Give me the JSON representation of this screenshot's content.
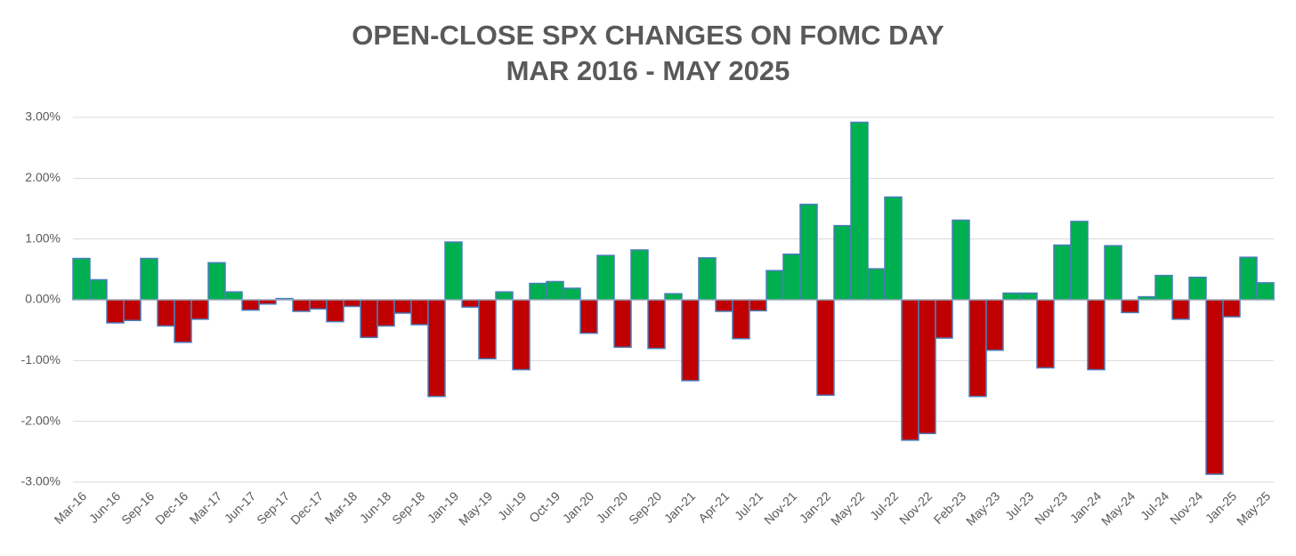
{
  "chart_data": {
    "type": "bar",
    "title": "OPEN-CLOSE SPX CHANGES ON FOMC DAY",
    "subtitle": "MAR 2016 - MAY 2025",
    "categories": [
      "Mar-16",
      null,
      "Jun-16",
      null,
      "Sep-16",
      null,
      "Dec-16",
      null,
      "Mar-17",
      null,
      "Jun-17",
      null,
      "Sep-17",
      null,
      "Dec-17",
      null,
      "Mar-18",
      null,
      "Jun-18",
      null,
      "Sep-18",
      null,
      "Jan-19",
      null,
      "May-19",
      null,
      "Jul-19",
      null,
      "Oct-19",
      null,
      "Jan-20",
      null,
      "Jun-20",
      null,
      "Sep-20",
      null,
      "Jan-21",
      null,
      "Apr-21",
      null,
      "Jul-21",
      null,
      "Nov-21",
      null,
      "Jan-22",
      null,
      "May-22",
      null,
      "Jul-22",
      null,
      "Nov-22",
      null,
      "Feb-23",
      null,
      "May-23",
      null,
      "Jul-23",
      null,
      "Nov-23",
      null,
      "Jan-24",
      null,
      "May-24",
      null,
      "Jul-24",
      null,
      "Nov-24",
      null,
      "Jan-25",
      null,
      "May-25"
    ],
    "values": [
      0.68,
      0.33,
      -0.38,
      -0.34,
      0.68,
      -0.43,
      -0.7,
      -0.32,
      0.61,
      0.13,
      -0.17,
      -0.07,
      0.02,
      -0.19,
      -0.15,
      -0.36,
      -0.11,
      -0.62,
      -0.43,
      -0.22,
      -0.41,
      -1.59,
      0.95,
      -0.12,
      -0.97,
      0.13,
      -1.15,
      0.27,
      0.3,
      0.19,
      -0.55,
      0.73,
      -0.78,
      0.82,
      -0.8,
      0.1,
      -1.33,
      0.69,
      -0.19,
      -0.64,
      -0.18,
      0.48,
      0.75,
      1.57,
      -1.57,
      1.22,
      2.92,
      0.51,
      1.69,
      -2.31,
      -2.2,
      -0.63,
      1.31,
      -1.59,
      -0.83,
      0.11,
      0.11,
      -1.12,
      0.9,
      1.29,
      -1.15,
      0.89,
      -0.21,
      0.05,
      0.4,
      -0.32,
      0.37,
      -2.87,
      -0.28,
      0.7,
      0.28
    ],
    "positive_color": "#00b050",
    "negative_color": "#c00000",
    "edge_color": "#4a7ebb",
    "ylim": [
      -3,
      3
    ],
    "yticks": [
      {
        "value": -3,
        "label": "-3.00%"
      },
      {
        "value": -2,
        "label": "-2.00%"
      },
      {
        "value": -1,
        "label": "-1.00%"
      },
      {
        "value": 0,
        "label": "0.00%"
      },
      {
        "value": 1,
        "label": "1.00%"
      },
      {
        "value": 2,
        "label": "2.00%"
      },
      {
        "value": 3,
        "label": "3.00%"
      }
    ],
    "grid": true
  }
}
